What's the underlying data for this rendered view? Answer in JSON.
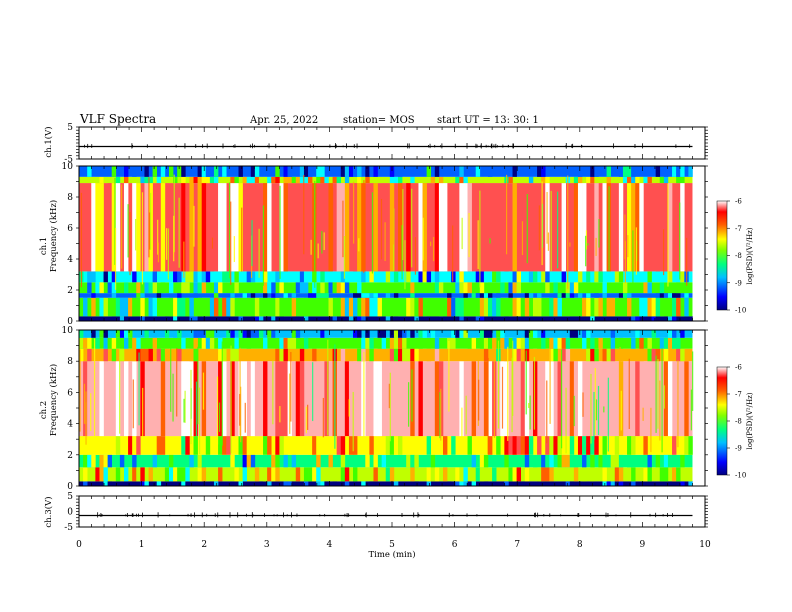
{
  "header": {
    "title": "VLF Spectra",
    "date": "Apr. 25, 2022",
    "station": "station= MOS",
    "start": "start  UT  =   13: 30: 1"
  },
  "chart_data": [
    {
      "type": "line",
      "panel": "ch1-waveform",
      "ylabel": "ch.1(V)",
      "ylim": [
        -5,
        5
      ],
      "yticks": [
        "5",
        "-5"
      ],
      "x": [
        0,
        9.8
      ],
      "values": [
        -1.1,
        -1.1
      ],
      "note_style": "flat trace with small spikes"
    },
    {
      "type": "heatmap",
      "panel": "ch1-spectrogram",
      "ylabel_top": "ch.1",
      "ylabel": "Frequency (kHz)",
      "ylim": [
        0,
        10
      ],
      "yticks": [
        "0",
        "2",
        "4",
        "6",
        "8",
        "10"
      ],
      "xlim": [
        0,
        10
      ],
      "data_extent_min": 9.8,
      "bands": [
        {
          "from": 0.0,
          "to": 0.3,
          "level": -10
        },
        {
          "from": 0.3,
          "to": 1.5,
          "level": -8.2
        },
        {
          "from": 1.5,
          "to": 1.8,
          "level": -9.4
        },
        {
          "from": 1.8,
          "to": 2.5,
          "level": -8.4
        },
        {
          "from": 2.5,
          "to": 3.2,
          "level": -8.8
        },
        {
          "from": 3.2,
          "to": 8.9,
          "level": -6.6
        },
        {
          "from": 8.9,
          "to": 9.3,
          "level": -8.0
        },
        {
          "from": 9.3,
          "to": 10.0,
          "level": -9.3
        }
      ],
      "colorbar": {
        "label": "log(PSD)(V²/Hz)",
        "ticks": [
          "-6",
          "-7",
          "-8",
          "-9",
          "-10"
        ],
        "range": [
          -10,
          -6
        ]
      }
    },
    {
      "type": "heatmap",
      "panel": "ch2-spectrogram",
      "ylabel_top": "ch.2",
      "ylabel": "Frequency (kHz)",
      "ylim": [
        0,
        10
      ],
      "yticks": [
        "0",
        "2",
        "4",
        "6",
        "8",
        "10"
      ],
      "xlim": [
        0,
        10
      ],
      "data_extent_min": 9.8,
      "bands": [
        {
          "from": 0.0,
          "to": 0.3,
          "level": -10
        },
        {
          "from": 0.3,
          "to": 1.2,
          "level": -8.0
        },
        {
          "from": 1.2,
          "to": 2.0,
          "level": -8.5
        },
        {
          "from": 2.0,
          "to": 3.2,
          "level": -7.6
        },
        {
          "from": 3.2,
          "to": 8.0,
          "level": -6.2
        },
        {
          "from": 8.0,
          "to": 8.8,
          "level": -7.4
        },
        {
          "from": 8.8,
          "to": 9.5,
          "level": -8.3
        },
        {
          "from": 9.5,
          "to": 10.0,
          "level": -9.2
        }
      ],
      "colorbar": {
        "label": "log(PSD)(V²/Hz)",
        "ticks": [
          "-6",
          "-7",
          "-8",
          "-9",
          "-10"
        ],
        "range": [
          -10,
          -6
        ]
      }
    },
    {
      "type": "line",
      "panel": "ch3-waveform",
      "ylabel": "ch.3(V)",
      "ylim": [
        -5,
        5
      ],
      "yticks": [
        "5",
        "0",
        "-5"
      ],
      "x": [
        0,
        9.8
      ],
      "values": [
        -1.3,
        -1.3
      ],
      "xlabel": "Time  (min)",
      "xticks": [
        "0",
        "1",
        "2",
        "3",
        "4",
        "5",
        "6",
        "7",
        "8",
        "9",
        "10"
      ]
    }
  ],
  "colors": {
    "colormap": [
      "#000080",
      "#0000ff",
      "#00a0ff",
      "#00ffff",
      "#00ff00",
      "#ffff00",
      "#ff8000",
      "#ff0000",
      "#ff8080",
      "#ffffff"
    ]
  }
}
